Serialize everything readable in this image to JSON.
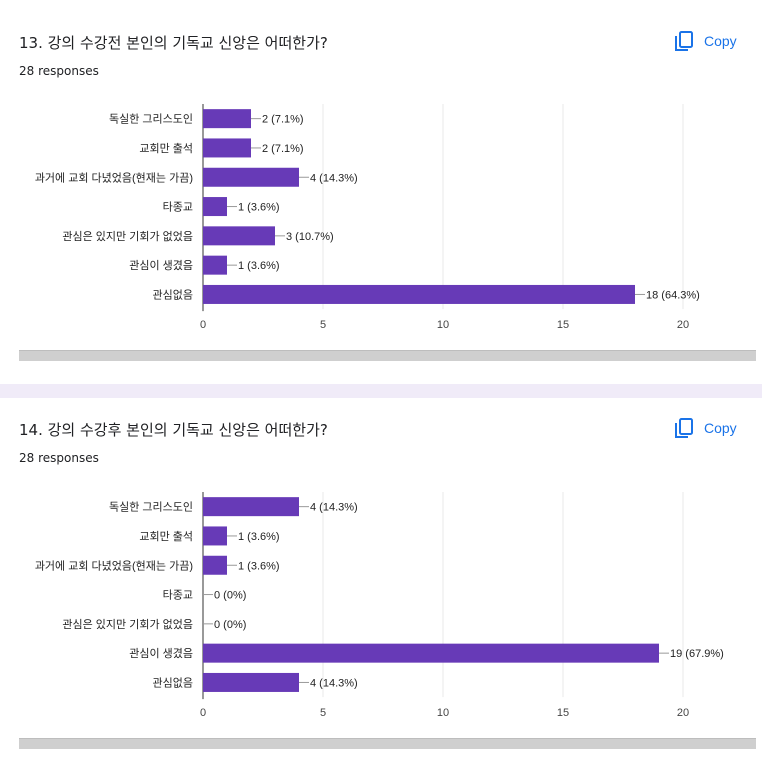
{
  "questions": [
    {
      "title": "13. 강의 수강전 본인의 기독교 신앙은 어떠한가?",
      "responses": "28 responses",
      "copy_label": "Copy"
    },
    {
      "title": "14. 강의 수강후 본인의 기독교 신앙은 어떠한가?",
      "responses": "28 responses",
      "copy_label": "Copy"
    }
  ],
  "colors": {
    "bar": "#673ab7",
    "accent": "#1a73e8"
  },
  "chart_data": [
    {
      "type": "bar",
      "orientation": "horizontal",
      "categories": [
        "독실한 그리스도인",
        "교회만 출석",
        "과거에 교회 다녔었음(현재는 가끔)",
        "타종교",
        "관심은 있지만 기회가 없었음",
        "관심이 생겼음",
        "관심없음"
      ],
      "values": [
        2,
        2,
        4,
        1,
        3,
        1,
        18
      ],
      "data_labels": [
        "2 (7.1%)",
        "2 (7.1%)",
        "4 (14.3%)",
        "1 (3.6%)",
        "3 (10.7%)",
        "1 (3.6%)",
        "18 (64.3%)"
      ],
      "xlim": [
        0,
        20
      ],
      "xticks": [
        0,
        5,
        10,
        15,
        20
      ],
      "grid": true
    },
    {
      "type": "bar",
      "orientation": "horizontal",
      "categories": [
        "독실한 그리스도인",
        "교회만 출석",
        "과거에 교회 다녔었음(현재는 가끔)",
        "타종교",
        "관심은 있지만 기회가 없었음",
        "관심이 생겼음",
        "관심없음"
      ],
      "values": [
        4,
        1,
        1,
        0,
        0,
        19,
        4
      ],
      "data_labels": [
        "4 (14.3%)",
        "1 (3.6%)",
        "1 (3.6%)",
        "0 (0%)",
        "0 (0%)",
        "19 (67.9%)",
        "4 (14.3%)"
      ],
      "xlim": [
        0,
        20
      ],
      "xticks": [
        0,
        5,
        10,
        15,
        20
      ],
      "grid": true
    }
  ]
}
